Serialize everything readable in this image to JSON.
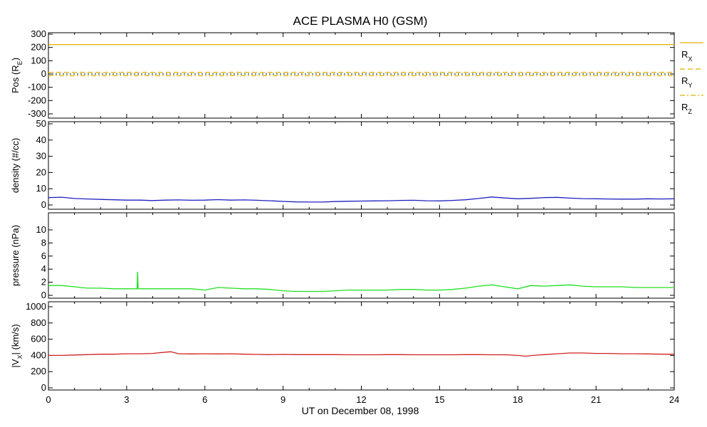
{
  "title": "ACE PLASMA H0 (GSM)",
  "xlabel": "UT on December 08, 1998",
  "chart_data": {
    "type": "line",
    "x_range": [
      0,
      24
    ],
    "x_ticks": [
      "0",
      "3",
      "6",
      "9",
      "12",
      "15",
      "18",
      "21",
      "24"
    ],
    "panels": [
      {
        "id": "pos",
        "ylabel": "Pos (R",
        "ylabel_sub": "E",
        "ylabel_suffix": ")",
        "ylim": [
          -330,
          330
        ],
        "y_ticks": [
          300,
          200,
          100,
          0,
          -100,
          -200,
          -300
        ],
        "series": [
          {
            "name": "R",
            "sub": "X",
            "color": "#e0b000",
            "dash": "solid",
            "x": [
              0,
              24
            ],
            "values": [
              222,
              222
            ]
          },
          {
            "name": "R",
            "sub": "Y",
            "color": "#e0b000",
            "dash": "dash",
            "x": [
              0,
              24
            ],
            "values": [
              13,
              13
            ]
          },
          {
            "name": "R",
            "sub": "Z",
            "color": "#e0b000",
            "dash": "dashdot",
            "x": [
              0,
              24
            ],
            "values": [
              -13,
              -13
            ]
          }
        ],
        "zero_line": true
      },
      {
        "id": "density",
        "ylabel": "density (#/cc)",
        "ylim": [
          0,
          50
        ],
        "y_ticks": [
          50,
          40,
          30,
          20,
          10,
          0
        ],
        "series": [
          {
            "color": "#2020c0",
            "x": [
              0,
              0.5,
              1,
              1.5,
              2,
              2.5,
              3,
              3.5,
              4,
              4.5,
              5,
              5.5,
              6,
              6.5,
              7,
              7.5,
              8,
              8.5,
              9,
              9.5,
              10,
              10.5,
              11,
              11.5,
              12,
              12.5,
              13,
              13.5,
              14,
              14.5,
              15,
              15.5,
              16,
              16.5,
              17,
              17.5,
              18,
              18.5,
              19,
              19.5,
              20,
              20.5,
              21,
              21.5,
              22,
              22.5,
              23,
              23.5,
              24
            ],
            "values": [
              4.5,
              4.8,
              4.0,
              3.7,
              3.4,
              3.2,
              3.0,
              3.0,
              2.7,
              3.0,
              3.1,
              2.9,
              3.0,
              3.3,
              3.0,
              3.1,
              2.9,
              2.6,
              2.2,
              1.9,
              1.8,
              1.8,
              2.1,
              2.3,
              2.4,
              2.5,
              2.6,
              2.8,
              2.9,
              2.6,
              2.5,
              2.8,
              3.2,
              4.0,
              4.9,
              4.3,
              3.8,
              4.1,
              4.5,
              4.7,
              4.2,
              3.9,
              3.8,
              3.7,
              3.6,
              3.6,
              3.8,
              3.7,
              3.8
            ]
          }
        ]
      },
      {
        "id": "pressure",
        "ylabel": "pressure (nPa)",
        "ylim": [
          0,
          11
        ],
        "y_ticks": [
          10,
          8,
          6,
          4,
          2,
          0
        ],
        "series": [
          {
            "color": "#20e020",
            "x": [
              0,
              0.5,
              1,
              1.5,
              2,
              2.5,
              3,
              3.4,
              3.42,
              3.44,
              3.5,
              4,
              4.5,
              5,
              5.5,
              6,
              6.5,
              7,
              7.5,
              8,
              8.5,
              9,
              9.5,
              10,
              10.5,
              11,
              11.5,
              12,
              12.5,
              13,
              13.5,
              14,
              14.5,
              15,
              15.5,
              16,
              16.5,
              17,
              17.5,
              18,
              18.5,
              19,
              19.5,
              20,
              20.5,
              21,
              21.5,
              22,
              22.5,
              23,
              23.5,
              24
            ],
            "values": [
              1.5,
              1.5,
              1.3,
              1.1,
              1.1,
              1.0,
              1.0,
              1.0,
              3.6,
              1.0,
              1.0,
              1.0,
              1.0,
              1.0,
              1.0,
              0.8,
              1.2,
              1.1,
              1.0,
              1.0,
              0.9,
              0.7,
              0.6,
              0.6,
              0.6,
              0.7,
              0.8,
              0.8,
              0.8,
              0.8,
              0.9,
              0.9,
              0.8,
              0.8,
              0.9,
              1.1,
              1.4,
              1.6,
              1.3,
              1.0,
              1.5,
              1.4,
              1.5,
              1.6,
              1.4,
              1.3,
              1.3,
              1.3,
              1.2,
              1.2,
              1.2,
              1.2
            ]
          }
        ]
      },
      {
        "id": "vx",
        "ylabel": "|V",
        "ylabel_sub": "X",
        "ylabel_suffix": "| (km/s)",
        "ylim": [
          0,
          1000
        ],
        "y_ticks": [
          1000,
          800,
          600,
          400,
          200,
          0
        ],
        "series": [
          {
            "color": "#d02020",
            "x": [
              0,
              0.5,
              1,
              1.5,
              2,
              2.5,
              3,
              3.5,
              4,
              4.5,
              4.7,
              5,
              5.5,
              6,
              6.5,
              7,
              7.5,
              8,
              8.5,
              9,
              9.5,
              10,
              10.5,
              11,
              11.5,
              12,
              12.5,
              13,
              13.5,
              14,
              14.5,
              15,
              15.5,
              16,
              16.5,
              17,
              17.5,
              18,
              18.3,
              18.6,
              19,
              19.5,
              20,
              20.5,
              21,
              21.5,
              22,
              22.5,
              23,
              23.5,
              24
            ],
            "values": [
              400,
              400,
              405,
              410,
              415,
              415,
              420,
              420,
              425,
              440,
              445,
              420,
              418,
              420,
              418,
              420,
              415,
              412,
              410,
              412,
              410,
              410,
              410,
              410,
              408,
              408,
              408,
              410,
              410,
              408,
              408,
              408,
              408,
              410,
              410,
              408,
              408,
              400,
              390,
              400,
              410,
              420,
              430,
              430,
              425,
              425,
              420,
              420,
              418,
              415,
              415
            ]
          }
        ]
      }
    ]
  }
}
